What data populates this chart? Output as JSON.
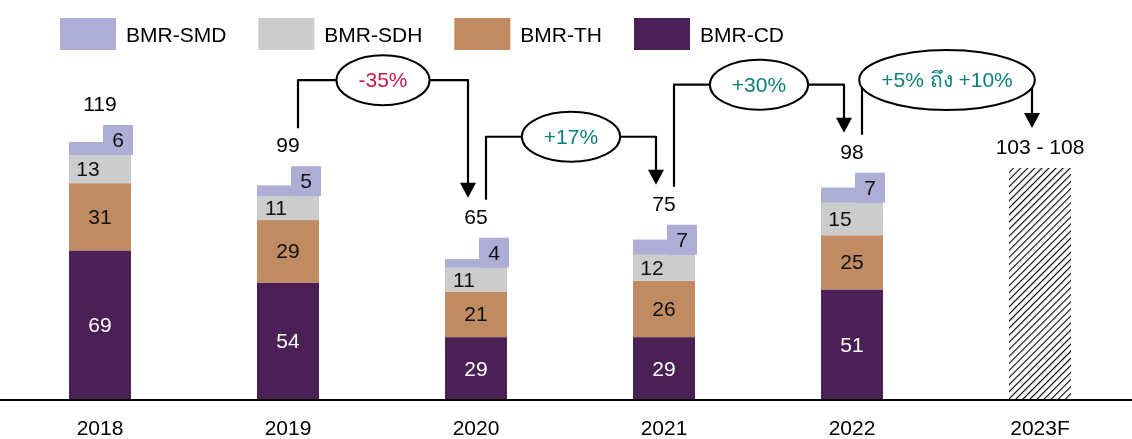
{
  "chart_data": {
    "type": "bar",
    "stacked": true,
    "legend": "top left",
    "categories": [
      "2018",
      "2019",
      "2020",
      "2021",
      "2022",
      "2023F"
    ],
    "series": [
      {
        "name": "BMR-CD",
        "color": "#4a2055",
        "values": [
          69,
          54,
          29,
          29,
          51,
          null
        ],
        "value_labels": [
          "69",
          "54",
          "29",
          "29",
          "51",
          null
        ]
      },
      {
        "name": "BMR-TH",
        "color": "#c08a63",
        "values": [
          31,
          29,
          21,
          26,
          25,
          null
        ],
        "value_labels": [
          "31",
          "29",
          "21",
          "26",
          "25",
          null
        ]
      },
      {
        "name": "BMR-SDH",
        "color": "#cccccc",
        "values": [
          13,
          11,
          11,
          12,
          15,
          null
        ],
        "value_labels": [
          "13",
          "11",
          "11",
          "12",
          "15",
          null
        ]
      },
      {
        "name": "BMR-SMD",
        "color": "#adadd6",
        "values": [
          6,
          5,
          4,
          7,
          7,
          null
        ],
        "value_labels": [
          "6",
          "5",
          "4",
          "7",
          "7",
          null
        ]
      },
      {
        "color": "#000000",
        "values": [
          null,
          null,
          null,
          null,
          null,
          107
        ]
      }
    ],
    "totals": [
      "119",
      "99",
      "65",
      "75",
      "98",
      "103 - 108"
    ],
    "annotations": [
      "-35%",
      "+17%",
      "+30%",
      "+5% ถึง +10%"
    ]
  }
}
